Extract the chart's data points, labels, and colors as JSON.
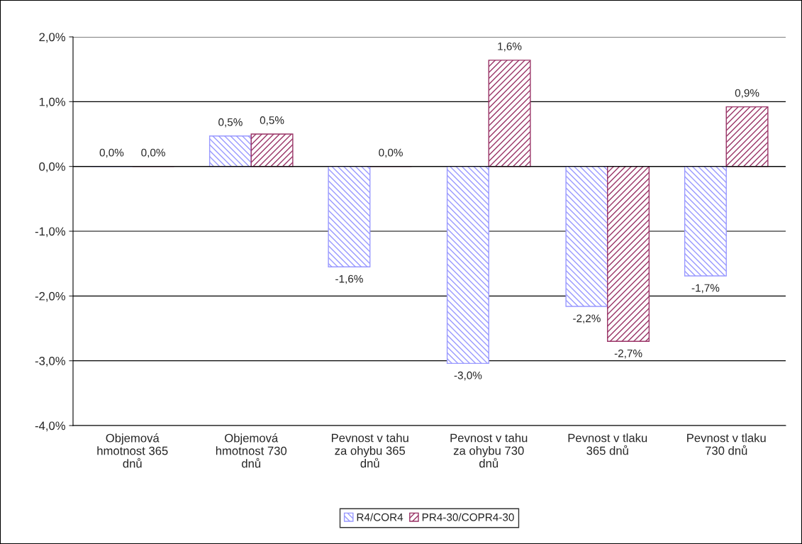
{
  "chart_data": {
    "type": "bar",
    "categories": [
      "Objemová\nhmotnost 365\ndnů",
      "Objemová\nhmotnost 730\ndnů",
      "Pevnost v tahu\nza ohybu 365\ndnů",
      "Pevnost v tahu\nza ohybu 730\ndnů",
      "Pevnost v tlaku\n365 dnů",
      "Pevnost v tlaku\n730 dnů"
    ],
    "series": [
      {
        "name": "R4/COR4",
        "color": "#9999ff",
        "values": [
          0.0,
          0.47,
          -1.55,
          -3.04,
          -2.16,
          -1.69
        ],
        "value_labels": [
          "0,0%",
          "0,5%",
          "-1,6%",
          "-3,0%",
          "-2,2%",
          "-1,7%"
        ]
      },
      {
        "name": "PR4-30/COPR4-30",
        "color": "#993366",
        "values": [
          0.0,
          0.5,
          0.0,
          1.64,
          -2.7,
          0.92
        ],
        "value_labels": [
          "0,0%",
          "0,5%",
          "0,0%",
          "1,6%",
          "-2,7%",
          "0,9%"
        ]
      }
    ],
    "ylim": [
      -4.0,
      2.0
    ],
    "yticks": [
      {
        "value": -4,
        "label": "-4,0%"
      },
      {
        "value": -3,
        "label": "-3,0%"
      },
      {
        "value": -2,
        "label": "-2,0%"
      },
      {
        "value": -1,
        "label": "-1,0%"
      },
      {
        "value": 0,
        "label": "0,0%"
      },
      {
        "value": 1,
        "label": "1,0%"
      },
      {
        "value": 2,
        "label": "2,0%"
      }
    ],
    "grid": "y",
    "legend": "bottom"
  }
}
